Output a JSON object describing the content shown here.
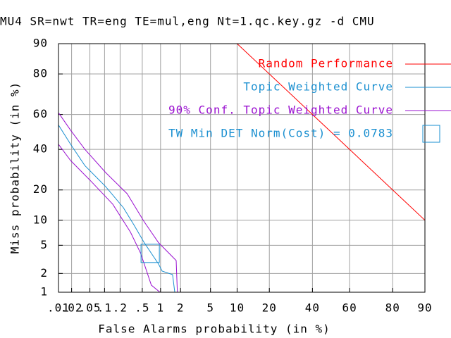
{
  "chart_data": {
    "type": "line",
    "title": "MU4 SR=nwt TR=eng TE=mul,eng Nt=1.qc.key.gz -d CMU",
    "x_label": "False Alarms probability (in %)",
    "y_label": "Miss probability (in %)",
    "scale": "probit",
    "grid": true,
    "legend": "top-right",
    "xlim": [
      0.01,
      90
    ],
    "ylim": [
      1,
      90
    ],
    "xticks": [
      {
        "value": 0.01,
        "label": ".01"
      },
      {
        "value": 0.02,
        "label": ".02"
      },
      {
        "value": 0.05,
        "label": ".05"
      },
      {
        "value": 0.1,
        "label": ".1"
      },
      {
        "value": 0.2,
        "label": ".2"
      },
      {
        "value": 0.5,
        "label": ".5"
      },
      1,
      2,
      5,
      10,
      20,
      40,
      60,
      80,
      90
    ],
    "yticks": [
      1,
      2,
      5,
      10,
      20,
      40,
      60,
      80,
      90
    ],
    "series": [
      {
        "name": "Random Performance",
        "color": "#ff0000",
        "marker": "line",
        "x": [
          10,
          20,
          40,
          60,
          80,
          90
        ],
        "values": [
          90,
          80,
          60,
          40,
          20,
          10
        ]
      },
      {
        "name": "Topic Weighted Curve",
        "color": "#1a8fd0",
        "marker": "line",
        "x": [
          0.01,
          0.019,
          0.039,
          0.105,
          0.23,
          0.36,
          0.54,
          0.93,
          1.06,
          1.53,
          1.65
        ],
        "values": [
          54,
          42.9,
          31.3,
          21.4,
          13.6,
          8.8,
          5.4,
          2.76,
          2.17,
          1.92,
          1
        ]
      },
      {
        "name": "90% Conf. Topic Weighted Curve",
        "color": "#9a10d0",
        "marker": "line",
        "x": [
          0.01,
          0.019,
          0.039,
          0.105,
          0.27,
          0.54,
          0.93,
          1.73,
          1.8
        ],
        "values": [
          61,
          51,
          40.1,
          27.8,
          18.5,
          9.6,
          5.4,
          3.1,
          1
        ]
      },
      {
        "color": "#9a10d0",
        "marker": "line",
        "x": [
          0.01,
          0.019,
          0.054,
          0.145,
          0.31,
          0.47,
          0.71,
          0.98
        ],
        "values": [
          42.9,
          33.9,
          23.5,
          14.7,
          7.3,
          3.9,
          1.31,
          1
        ]
      },
      {
        "name": "TW Min DET Norm(Cost) = 0.0783",
        "color": "#1a8fd0",
        "marker": "square",
        "x": [
          0.68
        ],
        "values": [
          3.9
        ]
      }
    ]
  }
}
